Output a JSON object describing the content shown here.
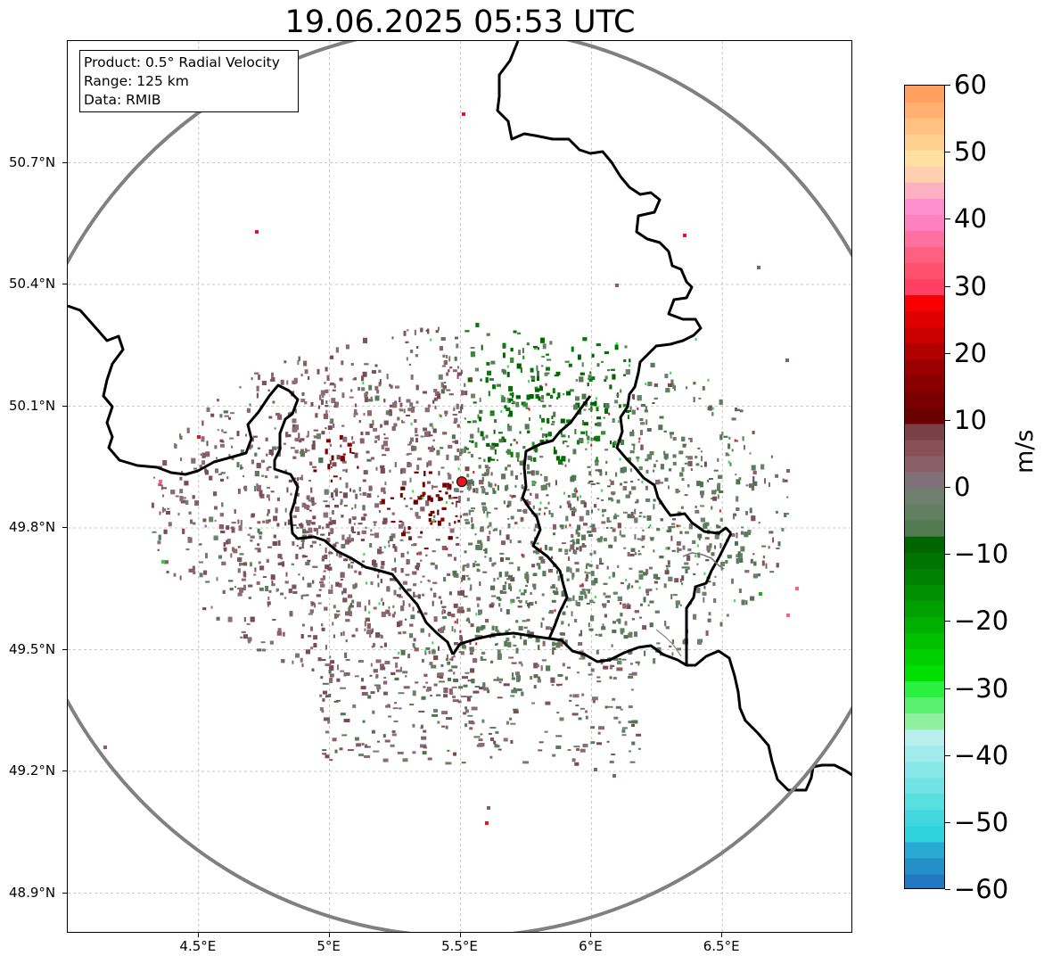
{
  "title": "19.06.2025 05:53 UTC",
  "info": {
    "product": "Product: 0.5° Radial Velocity",
    "range": "Range: 125 km",
    "source": "Data: RMIB"
  },
  "map": {
    "lon_range": [
      4.0,
      7.0
    ],
    "lat_range": [
      48.8,
      51.0
    ],
    "lat_labels": [
      "50.7°N",
      "50.4°N",
      "50.1°N",
      "49.8°N",
      "49.5°N",
      "49.2°N",
      "48.9°N"
    ],
    "lat_values": [
      50.7,
      50.4,
      50.1,
      49.8,
      49.5,
      49.2,
      48.9
    ],
    "lon_labels": [
      "4.5°E",
      "5°E",
      "5.5°E",
      "6°E",
      "6.5°E"
    ],
    "lon_values": [
      4.5,
      5.0,
      5.5,
      6.0,
      6.5
    ],
    "radar_site": {
      "lon": 5.505,
      "lat": 49.914
    },
    "range_ring_km": 125,
    "gridlines": "dashed",
    "colors": {
      "range_ring": "#808080",
      "borders": "#000000",
      "radar_marker": "#e8141e",
      "inbound_green": "#006400",
      "outbound_red": "#7a0000",
      "near_zero_greyish_green": "#5f7f5f",
      "near_zero_greyish_red": "#8a5f68"
    }
  },
  "colorbar": {
    "unit": "m/s",
    "min": -60,
    "max": 60,
    "tick_labels": [
      "60",
      "50",
      "40",
      "30",
      "20",
      "10",
      "0",
      "−10",
      "−20",
      "−30",
      "−40",
      "−50",
      "−60"
    ],
    "tick_values": [
      60,
      50,
      40,
      30,
      20,
      10,
      0,
      -10,
      -20,
      -30,
      -40,
      -50,
      -60
    ],
    "colors": [
      "#1f78c0",
      "#2390c8",
      "#28a8d2",
      "#2ed2dc",
      "#40d8de",
      "#58dfe0",
      "#70e4e4",
      "#88e8e8",
      "#a0ecec",
      "#b8f0f0",
      "#8ef0a0",
      "#5cf070",
      "#2af040",
      "#00e000",
      "#00d000",
      "#00c000",
      "#00b000",
      "#00a000",
      "#009000",
      "#008000",
      "#007400",
      "#006400",
      "#527a52",
      "#5f7f5f",
      "#6f7f6f",
      "#80707a",
      "#8a5f68",
      "#8a5058",
      "#7a4048",
      "#6a0000",
      "#7a0000",
      "#8a0000",
      "#9a0000",
      "#b00000",
      "#c80000",
      "#e00000",
      "#f80000",
      "#ff4060",
      "#ff5070",
      "#ff6080",
      "#ff70a0",
      "#ff80c0",
      "#ff90d0",
      "#ffb0c0",
      "#ffd0b0",
      "#ffe0a0",
      "#ffd090",
      "#ffc080",
      "#ffb070",
      "#ffa060"
    ]
  }
}
